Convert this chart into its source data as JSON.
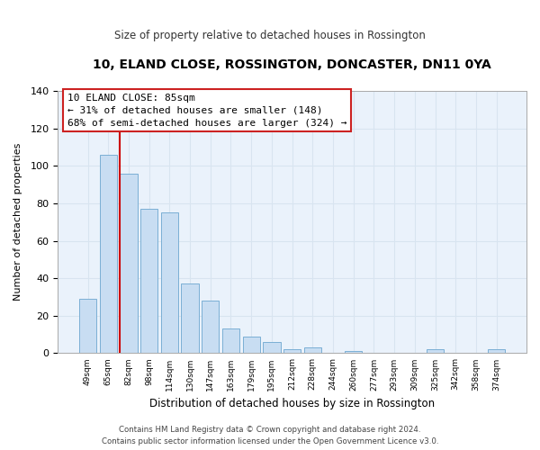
{
  "title": "10, ELAND CLOSE, ROSSINGTON, DONCASTER, DN11 0YA",
  "subtitle": "Size of property relative to detached houses in Rossington",
  "xlabel": "Distribution of detached houses by size in Rossington",
  "ylabel": "Number of detached properties",
  "bar_labels": [
    "49sqm",
    "65sqm",
    "82sqm",
    "98sqm",
    "114sqm",
    "130sqm",
    "147sqm",
    "163sqm",
    "179sqm",
    "195sqm",
    "212sqm",
    "228sqm",
    "244sqm",
    "260sqm",
    "277sqm",
    "293sqm",
    "309sqm",
    "325sqm",
    "342sqm",
    "358sqm",
    "374sqm"
  ],
  "bar_values": [
    29,
    106,
    96,
    77,
    75,
    37,
    28,
    13,
    9,
    6,
    2,
    3,
    0,
    1,
    0,
    0,
    0,
    2,
    0,
    0,
    2
  ],
  "bar_color": "#c8ddf2",
  "bar_edge_color": "#7bafd4",
  "vline_x_index": 2,
  "vline_color": "#cc0000",
  "ylim": [
    0,
    140
  ],
  "yticks": [
    0,
    20,
    40,
    60,
    80,
    100,
    120,
    140
  ],
  "annotation_title": "10 ELAND CLOSE: 85sqm",
  "annotation_line1": "← 31% of detached houses are smaller (148)",
  "annotation_line2": "68% of semi-detached houses are larger (324) →",
  "footer_line1": "Contains HM Land Registry data © Crown copyright and database right 2024.",
  "footer_line2": "Contains public sector information licensed under the Open Government Licence v3.0.",
  "bg_color": "#ffffff",
  "grid_color": "#d8e4f0",
  "plot_bg_color": "#eaf2fb"
}
